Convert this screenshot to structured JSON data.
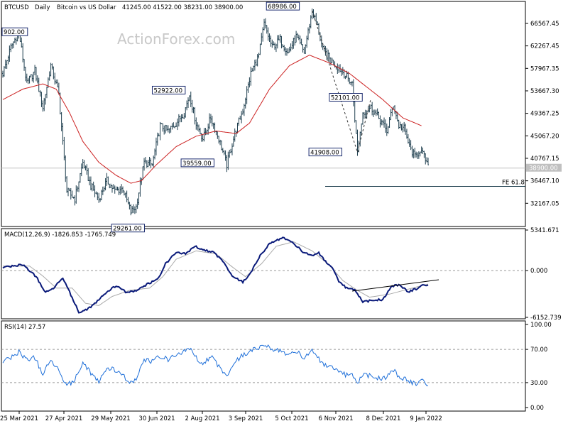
{
  "header": {
    "symbol": "BTCUSD",
    "timeframe": "Daily",
    "description": "Bitcoin vs US Dollar",
    "ohlc": "41245.00 41522.00 38231.00 38900.00",
    "watermark": "ActionForex.com"
  },
  "chart_data": [
    {
      "type": "candlestick",
      "title": "BTCUSD, Daily: Bitcoin vs US Dollar 41245.00 41522.00 38231.00 38900.00",
      "ylim": [
        28000,
        70500
      ],
      "y_ticks": [
        "66567.45",
        "62267.45",
        "57967.35",
        "53667.30",
        "49367.25",
        "45067.20",
        "40767.15",
        "36467.10",
        "32167.05"
      ],
      "current_price_label": "38900.00",
      "fe_level": 35400,
      "fe_label": "FE 61.8",
      "annotations": [
        {
          "label": "902.00",
          "price": 64902
        },
        {
          "label": "29261.00",
          "price": 29261
        },
        {
          "label": "52922.00",
          "price": 52922
        },
        {
          "label": "39559.00",
          "price": 39559
        },
        {
          "label": "68986.00",
          "price": 68986
        },
        {
          "label": "41908.00",
          "price": 41908
        },
        {
          "label": "52101.00",
          "price": 52101
        }
      ],
      "x_labels": [
        "25 Mar 2021",
        "27 Apr 2021",
        "29 May 2021",
        "30 Jun 2021",
        "2 Aug 2021",
        "3 Sep 2021",
        "5 Oct 2021",
        "6 Nov 2021",
        "8 Dec 2021",
        "9 Jan 2022"
      ],
      "anchors": [
        [
          0,
          57000
        ],
        [
          6,
          62000
        ],
        [
          12,
          64902
        ],
        [
          18,
          55000
        ],
        [
          24,
          57500
        ],
        [
          30,
          50500
        ],
        [
          36,
          58500
        ],
        [
          42,
          53000
        ],
        [
          48,
          34500
        ],
        [
          54,
          33000
        ],
        [
          60,
          40000
        ],
        [
          66,
          35500
        ],
        [
          72,
          33000
        ],
        [
          78,
          36500
        ],
        [
          84,
          34500
        ],
        [
          90,
          35000
        ],
        [
          96,
          30500
        ],
        [
          100,
          31500
        ],
        [
          106,
          40000
        ],
        [
          112,
          39500
        ],
        [
          118,
          47000
        ],
        [
          124,
          46000
        ],
        [
          130,
          47500
        ],
        [
          136,
          49500
        ],
        [
          140,
          52922
        ],
        [
          145,
          47500
        ],
        [
          150,
          44500
        ],
        [
          156,
          48500
        ],
        [
          162,
          44500
        ],
        [
          168,
          39559
        ],
        [
          174,
          45500
        ],
        [
          180,
          50000
        ],
        [
          186,
          57000
        ],
        [
          192,
          60500
        ],
        [
          196,
          66500
        ],
        [
          202,
          62000
        ],
        [
          208,
          63500
        ],
        [
          214,
          61000
        ],
        [
          220,
          64000
        ],
        [
          226,
          61000
        ],
        [
          232,
          68986
        ],
        [
          236,
          66000
        ],
        [
          240,
          61500
        ],
        [
          246,
          59500
        ],
        [
          252,
          58000
        ],
        [
          256,
          57000
        ],
        [
          262,
          55000
        ],
        [
          266,
          41908
        ],
        [
          270,
          49500
        ],
        [
          276,
          50500
        ],
        [
          282,
          48500
        ],
        [
          288,
          46000
        ],
        [
          293,
          51000
        ],
        [
          297,
          47000
        ],
        [
          301,
          46500
        ],
        [
          305,
          43000
        ],
        [
          309,
          41000
        ],
        [
          313,
          42500
        ],
        [
          317,
          40500
        ],
        [
          319,
          38900
        ]
      ],
      "moving_average": [
        [
          0,
          52000
        ],
        [
          15,
          54000
        ],
        [
          30,
          55000
        ],
        [
          40,
          54000
        ],
        [
          50,
          49500
        ],
        [
          60,
          44000
        ],
        [
          72,
          40000
        ],
        [
          85,
          37500
        ],
        [
          96,
          36000
        ],
        [
          104,
          36500
        ],
        [
          115,
          39500
        ],
        [
          130,
          43000
        ],
        [
          145,
          45000
        ],
        [
          160,
          46000
        ],
        [
          175,
          45500
        ],
        [
          185,
          47500
        ],
        [
          200,
          54000
        ],
        [
          215,
          58500
        ],
        [
          230,
          60500
        ],
        [
          245,
          59000
        ],
        [
          260,
          57000
        ],
        [
          270,
          55000
        ],
        [
          285,
          52000
        ],
        [
          300,
          48500
        ],
        [
          314,
          47000
        ]
      ]
    },
    {
      "type": "line",
      "title": "MACD(12,26,9) -1826.853 -1765.749",
      "ylim": [
        -6152.739,
        5341.671
      ],
      "y_ticks": [
        "5341.671",
        "0.000",
        "-6152.739"
      ],
      "series": [
        {
          "name": "MACD",
          "points": [
            [
              0,
              400
            ],
            [
              15,
              800
            ],
            [
              25,
              -800
            ],
            [
              32,
              -2900
            ],
            [
              38,
              -2300
            ],
            [
              45,
              -900
            ],
            [
              50,
              -2800
            ],
            [
              57,
              -5500
            ],
            [
              64,
              -5000
            ],
            [
              70,
              -4200
            ],
            [
              78,
              -2800
            ],
            [
              85,
              -2000
            ],
            [
              92,
              -2800
            ],
            [
              100,
              -2700
            ],
            [
              108,
              -1800
            ],
            [
              116,
              -1200
            ],
            [
              122,
              900
            ],
            [
              130,
              2400
            ],
            [
              137,
              2200
            ],
            [
              144,
              3200
            ],
            [
              150,
              2800
            ],
            [
              158,
              2400
            ],
            [
              165,
              1300
            ],
            [
              172,
              -700
            ],
            [
              180,
              -1500
            ],
            [
              186,
              -300
            ],
            [
              193,
              2000
            ],
            [
              200,
              3500
            ],
            [
              210,
              4400
            ],
            [
              218,
              3600
            ],
            [
              225,
              2500
            ],
            [
              232,
              2000
            ],
            [
              237,
              2300
            ],
            [
              242,
              1200
            ],
            [
              248,
              100
            ],
            [
              252,
              -1500
            ],
            [
              258,
              -2300
            ],
            [
              264,
              -2600
            ],
            [
              270,
              -4100
            ],
            [
              278,
              -3900
            ],
            [
              285,
              -3800
            ],
            [
              292,
              -2000
            ],
            [
              298,
              -1900
            ],
            [
              304,
              -2800
            ],
            [
              310,
              -2400
            ],
            [
              314,
              -2000
            ],
            [
              319,
              -1826.853
            ]
          ]
        },
        {
          "name": "Signal",
          "points": [
            [
              0,
              600
            ],
            [
              20,
              600
            ],
            [
              30,
              -700
            ],
            [
              40,
              -2300
            ],
            [
              52,
              -2300
            ],
            [
              62,
              -4300
            ],
            [
              72,
              -4600
            ],
            [
              82,
              -3400
            ],
            [
              95,
              -2600
            ],
            [
              110,
              -2300
            ],
            [
              120,
              -800
            ],
            [
              130,
              1500
            ],
            [
              145,
              2600
            ],
            [
              160,
              2200
            ],
            [
              172,
              500
            ],
            [
              182,
              -800
            ],
            [
              194,
              900
            ],
            [
              205,
              3200
            ],
            [
              218,
              3800
            ],
            [
              232,
              2600
            ],
            [
              245,
              700
            ],
            [
              255,
              -1300
            ],
            [
              265,
              -2500
            ],
            [
              275,
              -3500
            ],
            [
              290,
              -3100
            ],
            [
              305,
              -2400
            ],
            [
              319,
              -1765.749
            ]
          ]
        }
      ]
    },
    {
      "type": "line",
      "title": "RSI(14) 27.57",
      "ylim": [
        0,
        100
      ],
      "y_ticks": [
        "100.00",
        "70.00",
        "30.00",
        "0.00"
      ],
      "series": [
        {
          "name": "RSI",
          "points": [
            [
              0,
              55
            ],
            [
              6,
              60
            ],
            [
              12,
              67
            ],
            [
              18,
              58
            ],
            [
              24,
              60
            ],
            [
              30,
              40
            ],
            [
              36,
              57
            ],
            [
              42,
              45
            ],
            [
              48,
              27
            ],
            [
              54,
              33
            ],
            [
              60,
              55
            ],
            [
              66,
              42
            ],
            [
              72,
              30
            ],
            [
              78,
              48
            ],
            [
              84,
              45
            ],
            [
              90,
              38
            ],
            [
              96,
              30
            ],
            [
              100,
              33
            ],
            [
              106,
              58
            ],
            [
              112,
              55
            ],
            [
              118,
              62
            ],
            [
              124,
              58
            ],
            [
              130,
              63
            ],
            [
              136,
              67
            ],
            [
              140,
              72
            ],
            [
              145,
              60
            ],
            [
              150,
              53
            ],
            [
              156,
              62
            ],
            [
              162,
              50
            ],
            [
              168,
              38
            ],
            [
              174,
              55
            ],
            [
              180,
              63
            ],
            [
              186,
              68
            ],
            [
              192,
              72
            ],
            [
              196,
              77
            ],
            [
              202,
              68
            ],
            [
              208,
              70
            ],
            [
              214,
              63
            ],
            [
              220,
              68
            ],
            [
              226,
              60
            ],
            [
              232,
              70
            ],
            [
              236,
              60
            ],
            [
              240,
              52
            ],
            [
              246,
              48
            ],
            [
              252,
              42
            ],
            [
              256,
              40
            ],
            [
              262,
              38
            ],
            [
              266,
              28
            ],
            [
              270,
              40
            ],
            [
              276,
              38
            ],
            [
              282,
              35
            ],
            [
              288,
              37
            ],
            [
              293,
              46
            ],
            [
              297,
              36
            ],
            [
              301,
              35
            ],
            [
              305,
              32
            ],
            [
              309,
              28
            ],
            [
              313,
              33
            ],
            [
              317,
              30
            ],
            [
              319,
              27.57
            ]
          ]
        }
      ]
    }
  ]
}
